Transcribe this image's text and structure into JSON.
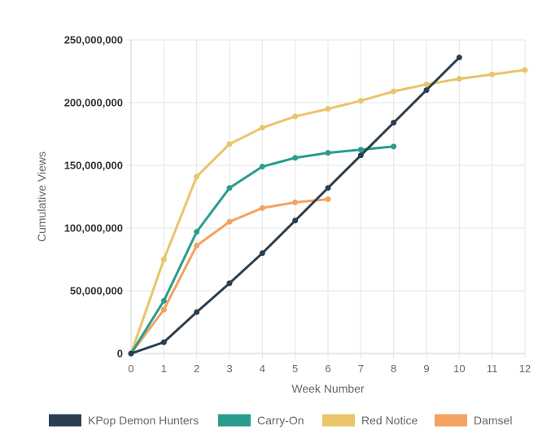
{
  "chart_data": {
    "type": "line",
    "title": "",
    "xlabel": "Week Number",
    "ylabel": "Cumulative Views",
    "x_ticks": [
      "0",
      "1",
      "2",
      "3",
      "4",
      "5",
      "6",
      "7",
      "8",
      "9",
      "10",
      "11",
      "12"
    ],
    "y_ticks": [
      "0",
      "50,000,000",
      "100,000,000",
      "150,000,000",
      "200,000,000",
      "250,000,000"
    ],
    "xlim": [
      0,
      12
    ],
    "ylim": [
      0,
      250000000
    ],
    "grid": true,
    "legend_position": "bottom",
    "series": [
      {
        "name": "KPop Demon Hunters",
        "color": "#2c3e50",
        "x": [
          0,
          1,
          2,
          3,
          4,
          5,
          6,
          7,
          8,
          9,
          10
        ],
        "values": [
          0,
          9000000,
          33000000,
          56000000,
          80000000,
          106000000,
          132000000,
          158000000,
          184000000,
          210000000,
          236000000
        ]
      },
      {
        "name": "Carry-On",
        "color": "#2a9d8f",
        "x": [
          0,
          1,
          2,
          3,
          4,
          5,
          6,
          7,
          8
        ],
        "values": [
          0,
          42000000,
          97000000,
          132000000,
          149000000,
          156000000,
          160000000,
          162500000,
          165000000
        ]
      },
      {
        "name": "Red Notice",
        "color": "#e9c46a",
        "x": [
          0,
          1,
          2,
          3,
          4,
          5,
          6,
          7,
          8,
          9,
          10,
          11,
          12
        ],
        "values": [
          0,
          75000000,
          141000000,
          167000000,
          180000000,
          189000000,
          195000000,
          201500000,
          209000000,
          214500000,
          219000000,
          222500000,
          226000000
        ]
      },
      {
        "name": "Damsel",
        "color": "#f4a261",
        "x": [
          0,
          1,
          2,
          3,
          4,
          5,
          6
        ],
        "values": [
          0,
          35000000,
          86000000,
          105000000,
          116000000,
          120500000,
          123000000
        ]
      }
    ]
  }
}
